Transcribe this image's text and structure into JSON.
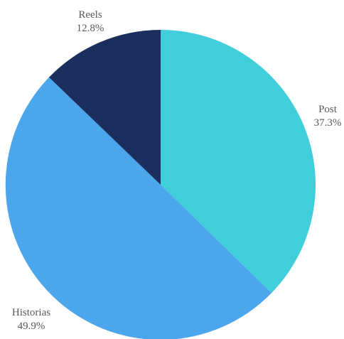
{
  "chart_data": {
    "type": "pie",
    "slices": [
      {
        "label": "Post",
        "value": 37.3,
        "value_label": "37.3%",
        "color": "#40CFDA"
      },
      {
        "label": "Historias",
        "value": 49.9,
        "value_label": "49.9%",
        "color": "#4BA6EC"
      },
      {
        "label": "Reels",
        "value": 12.8,
        "value_label": "12.8%",
        "color": "#1B2F5E"
      }
    ],
    "start_angle": "12 o'clock",
    "direction": "clockwise",
    "legend": "none",
    "data_labels": "outside, category name above percentage"
  }
}
